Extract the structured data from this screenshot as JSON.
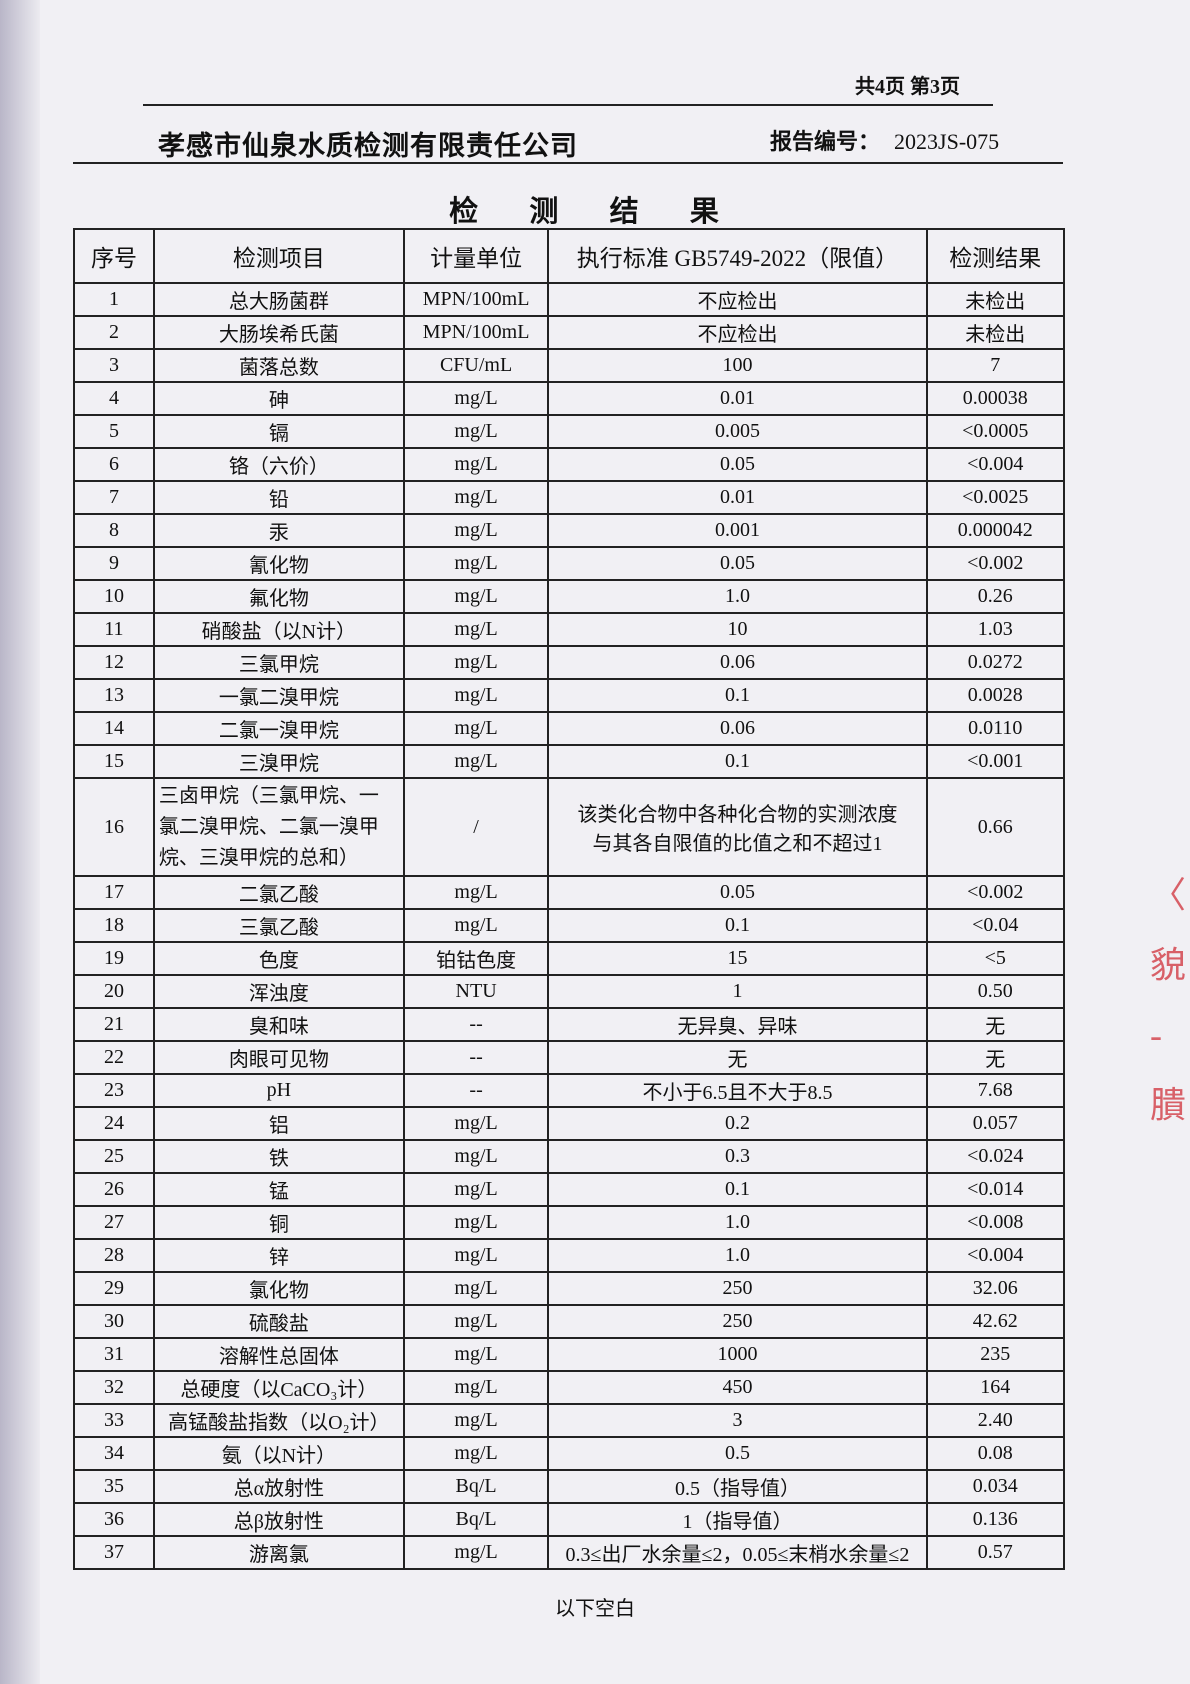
{
  "header": {
    "page_info": "共4页 第3页",
    "company": "孝感市仙泉水质检测有限责任公司",
    "report_no_label": "报告编号：",
    "report_no": "2023JS-075"
  },
  "title": "检 测 结 果",
  "table": {
    "columns": [
      "序号",
      "检测项目",
      "计量单位",
      "执行标准 GB5749-2022（限值）",
      "检测结果"
    ],
    "rows": [
      [
        "1",
        "总大肠菌群",
        "MPN/100mL",
        "不应检出",
        "未检出"
      ],
      [
        "2",
        "大肠埃希氏菌",
        "MPN/100mL",
        "不应检出",
        "未检出"
      ],
      [
        "3",
        "菌落总数",
        "CFU/mL",
        "100",
        "7"
      ],
      [
        "4",
        "砷",
        "mg/L",
        "0.01",
        "0.00038"
      ],
      [
        "5",
        "镉",
        "mg/L",
        "0.005",
        "<0.0005"
      ],
      [
        "6",
        "铬（六价）",
        "mg/L",
        "0.05",
        "<0.004"
      ],
      [
        "7",
        "铅",
        "mg/L",
        "0.01",
        "<0.0025"
      ],
      [
        "8",
        "汞",
        "mg/L",
        "0.001",
        "0.000042"
      ],
      [
        "9",
        "氰化物",
        "mg/L",
        "0.05",
        "<0.002"
      ],
      [
        "10",
        "氟化物",
        "mg/L",
        "1.0",
        "0.26"
      ],
      [
        "11",
        "硝酸盐（以N计）",
        "mg/L",
        "10",
        "1.03"
      ],
      [
        "12",
        "三氯甲烷",
        "mg/L",
        "0.06",
        "0.0272"
      ],
      [
        "13",
        "一氯二溴甲烷",
        "mg/L",
        "0.1",
        "0.0028"
      ],
      [
        "14",
        "二氯一溴甲烷",
        "mg/L",
        "0.06",
        "0.0110"
      ],
      [
        "15",
        "三溴甲烷",
        "mg/L",
        "0.1",
        "<0.001"
      ],
      [
        "16",
        "三卤甲烷（三氯甲烷、一氯二溴甲烷、二氯一溴甲烷、三溴甲烷的总和）",
        "/",
        "该类化合物中各种化合物的实测浓度与其各自限值的比值之和不超过1",
        "0.66"
      ],
      [
        "17",
        "二氯乙酸",
        "mg/L",
        "0.05",
        "<0.002"
      ],
      [
        "18",
        "三氯乙酸",
        "mg/L",
        "0.1",
        "<0.04"
      ],
      [
        "19",
        "色度",
        "铂钴色度",
        "15",
        "<5"
      ],
      [
        "20",
        "浑浊度",
        "NTU",
        "1",
        "0.50"
      ],
      [
        "21",
        "臭和味",
        "--",
        "无异臭、异味",
        "无"
      ],
      [
        "22",
        "肉眼可见物",
        "--",
        "无",
        "无"
      ],
      [
        "23",
        "pH",
        "--",
        "不小于6.5且不大于8.5",
        "7.68"
      ],
      [
        "24",
        "铝",
        "mg/L",
        "0.2",
        "0.057"
      ],
      [
        "25",
        "铁",
        "mg/L",
        "0.3",
        "<0.024"
      ],
      [
        "26",
        "锰",
        "mg/L",
        "0.1",
        "<0.014"
      ],
      [
        "27",
        "铜",
        "mg/L",
        "1.0",
        "<0.008"
      ],
      [
        "28",
        "锌",
        "mg/L",
        "1.0",
        "<0.004"
      ],
      [
        "29",
        "氯化物",
        "mg/L",
        "250",
        "32.06"
      ],
      [
        "30",
        "硫酸盐",
        "mg/L",
        "250",
        "42.62"
      ],
      [
        "31",
        "溶解性总固体",
        "mg/L",
        "1000",
        "235"
      ],
      [
        "32",
        "总硬度（以CaCO₃计）",
        "mg/L",
        "450",
        "164"
      ],
      [
        "33",
        "高锰酸盐指数（以O₂计）",
        "mg/L",
        "3",
        "2.40"
      ],
      [
        "34",
        "氨（以N计）",
        "mg/L",
        "0.5",
        "0.08"
      ],
      [
        "35",
        "总α放射性",
        "Bq/L",
        "0.5（指导值）",
        "0.034"
      ],
      [
        "36",
        "总β放射性",
        "Bq/L",
        "1（指导值）",
        "0.136"
      ],
      [
        "37",
        "游离氯",
        "mg/L",
        "0.3≤出厂水余量≤2，0.05≤末梢水余量≤2",
        "0.57"
      ]
    ]
  },
  "footer_note": "以下空白",
  "colors": {
    "paper": "#f1f0f4",
    "ink": "#111111",
    "stamp": "#d0303a"
  }
}
